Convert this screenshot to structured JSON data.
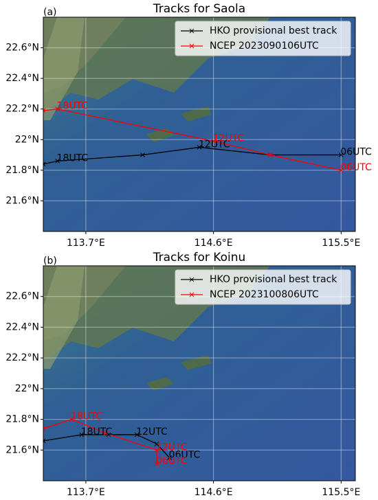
{
  "chart_data": [
    {
      "type": "line",
      "panel_label": "(a)",
      "title": "Tracks for Saola",
      "xlim": [
        113.4,
        115.6
      ],
      "xticks": [
        {
          "value": 113.7,
          "label": "113.7°E"
        },
        {
          "value": 114.6,
          "label": "114.6°E"
        },
        {
          "value": 115.5,
          "label": "115.5°E"
        }
      ],
      "ylim": [
        21.4,
        22.8
      ],
      "yticks": [
        {
          "value": 21.6,
          "label": "21.6°N"
        },
        {
          "value": 21.8,
          "label": "21.8°N"
        },
        {
          "value": 22,
          "label": "22°N"
        },
        {
          "value": 22.2,
          "label": "22.2°N"
        },
        {
          "value": 22.4,
          "label": "22.4°N"
        },
        {
          "value": 22.6,
          "label": "22.6°N"
        }
      ],
      "grid": true,
      "legend": "upper right",
      "series": [
        {
          "name": "HKO provisional best track",
          "color": "#000000",
          "x": [
            113.4,
            113.5,
            114.1,
            114.5,
            115.0,
            115.5
          ],
          "values": [
            21.84,
            21.86,
            21.9,
            21.95,
            21.9,
            21.9
          ],
          "point_labels": [
            null,
            "18UTC",
            null,
            "12UTC",
            null,
            "06UTC"
          ]
        },
        {
          "name": "NCEP 2023090106UTC",
          "color": "#ff0000",
          "x": [
            113.4,
            113.5,
            114.6,
            115.0,
            115.5
          ],
          "values": [
            22.19,
            22.2,
            21.99,
            21.9,
            21.8
          ],
          "point_labels": [
            null,
            "18UTC",
            "12UTC",
            null,
            "06UTC"
          ]
        }
      ]
    },
    {
      "type": "line",
      "panel_label": "(b)",
      "title": "Tracks for Koinu",
      "xlim": [
        113.4,
        115.6
      ],
      "xticks": [
        {
          "value": 113.7,
          "label": "113.7°E"
        },
        {
          "value": 114.6,
          "label": "114.6°E"
        },
        {
          "value": 115.5,
          "label": "115.5°E"
        }
      ],
      "ylim": [
        21.4,
        22.8
      ],
      "yticks": [
        {
          "value": 21.6,
          "label": "21.6°N"
        },
        {
          "value": 21.8,
          "label": "21.8°N"
        },
        {
          "value": 22,
          "label": "22°N"
        },
        {
          "value": 22.2,
          "label": "22.2°N"
        },
        {
          "value": 22.4,
          "label": "22.4°N"
        },
        {
          "value": 22.6,
          "label": "22.6°N"
        }
      ],
      "grid": true,
      "legend": "upper right",
      "series": [
        {
          "name": "HKO provisional best track",
          "color": "#000000",
          "x": [
            113.4,
            113.67,
            113.86,
            114.06,
            114.2,
            114.29
          ],
          "values": [
            21.66,
            21.7,
            21.7,
            21.7,
            21.64,
            21.55
          ],
          "point_labels": [
            null,
            "18UTC",
            null,
            "12UTC",
            null,
            "06UTC"
          ]
        },
        {
          "name": "NCEP 2023100806UTC",
          "color": "#ff0000",
          "x": [
            113.4,
            113.6,
            113.84,
            114.2,
            114.2
          ],
          "values": [
            21.74,
            21.8,
            21.71,
            21.6,
            21.51
          ],
          "point_labels": [
            null,
            "18UTC",
            null,
            "12UTC",
            "06UTC"
          ]
        }
      ]
    }
  ]
}
